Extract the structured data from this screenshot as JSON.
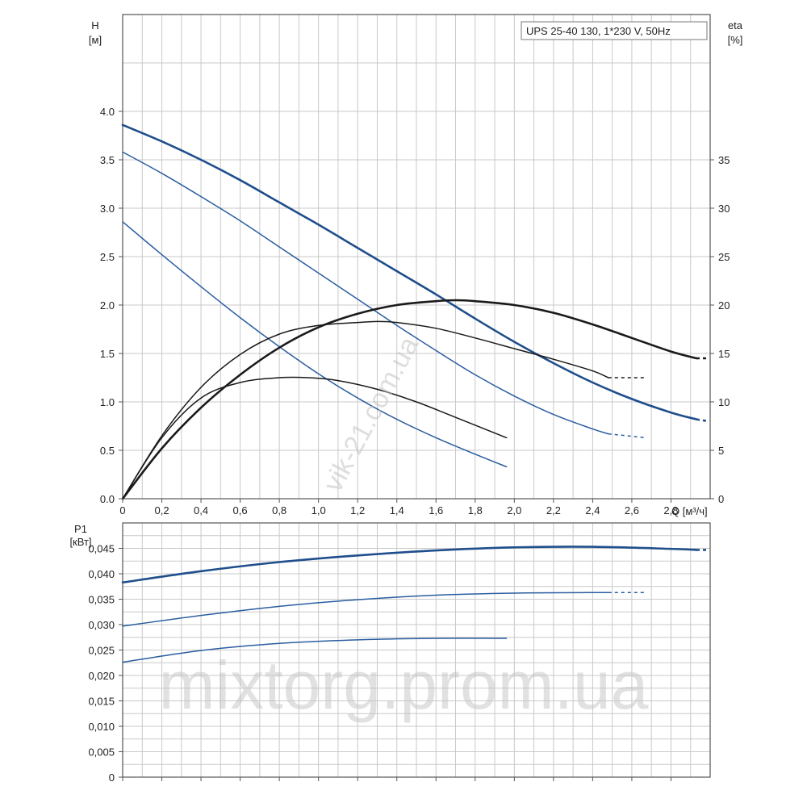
{
  "chart_data": [
    {
      "type": "line",
      "title": "UPS 25-40 130, 1*230 V, 50Hz",
      "xlabel": "Q [м³/ч]",
      "ylabel": "H",
      "ylabel_unit": "[м]",
      "y2label": "eta",
      "y2label_unit": "[%]",
      "xlim": [
        0,
        3.0
      ],
      "ylim": [
        0,
        5.0
      ],
      "y2lim": [
        0,
        50
      ],
      "xticks": [
        "0",
        "0,2",
        "0,4",
        "0,6",
        "0,8",
        "1,0",
        "1,2",
        "1,4",
        "1,6",
        "1,8",
        "2,0",
        "2,2",
        "2,4",
        "2,6",
        "2,8"
      ],
      "yticks": [
        "0.0",
        "0.5",
        "1.0",
        "1.5",
        "2.0",
        "2.5",
        "3.0",
        "3.5",
        "4.0"
      ],
      "y2ticks": [
        "0",
        "5",
        "10",
        "15",
        "20",
        "25",
        "30",
        "35"
      ],
      "grid": true,
      "series": [
        {
          "kind": "head",
          "speed": 3,
          "axis": "H",
          "color": "#1f4e8c",
          "x": [
            0,
            0.2,
            0.4,
            0.6,
            0.8,
            1.0,
            1.2,
            1.4,
            1.6,
            1.8,
            2.0,
            2.2,
            2.4,
            2.6,
            2.8,
            2.93
          ],
          "y": [
            3.86,
            3.69,
            3.5,
            3.29,
            3.06,
            2.83,
            2.59,
            2.35,
            2.11,
            1.86,
            1.62,
            1.4,
            1.2,
            1.03,
            0.89,
            0.82
          ],
          "dash_x": [
            2.93,
            2.99
          ],
          "dash_y": [
            0.82,
            0.8
          ]
        },
        {
          "kind": "head",
          "speed": 2,
          "axis": "H",
          "color": "#2a5da0",
          "x": [
            0,
            0.2,
            0.4,
            0.6,
            0.8,
            1.0,
            1.2,
            1.4,
            1.6,
            1.8,
            2.0,
            2.2,
            2.4,
            2.48
          ],
          "y": [
            3.58,
            3.36,
            3.12,
            2.87,
            2.6,
            2.33,
            2.06,
            1.79,
            1.53,
            1.28,
            1.06,
            0.87,
            0.72,
            0.67
          ],
          "dash_x": [
            2.48,
            2.67
          ],
          "dash_y": [
            0.67,
            0.63
          ]
        },
        {
          "kind": "head",
          "speed": 1,
          "axis": "H",
          "color": "#2a5da0",
          "x": [
            0,
            0.2,
            0.4,
            0.6,
            0.8,
            1.0,
            1.2,
            1.4,
            1.6,
            1.8,
            1.96
          ],
          "y": [
            2.86,
            2.52,
            2.19,
            1.87,
            1.57,
            1.29,
            1.04,
            0.82,
            0.63,
            0.46,
            0.33
          ]
        },
        {
          "kind": "eta",
          "speed": 3,
          "axis": "eta",
          "color": "#1a1a1a",
          "x": [
            0,
            0.2,
            0.4,
            0.6,
            0.8,
            1.0,
            1.2,
            1.4,
            1.6,
            1.7,
            1.8,
            2.0,
            2.2,
            2.4,
            2.6,
            2.8,
            2.93
          ],
          "y": [
            0,
            5.2,
            9.4,
            12.8,
            15.6,
            17.7,
            19.1,
            20.0,
            20.4,
            20.5,
            20.4,
            20.0,
            19.2,
            18.0,
            16.6,
            15.2,
            14.5
          ],
          "dash_x": [
            2.93,
            2.99
          ],
          "dash_y": [
            14.5,
            14.5
          ]
        },
        {
          "kind": "eta",
          "speed": 2,
          "axis": "eta",
          "color": "#1a1a1a",
          "x": [
            0,
            0.2,
            0.4,
            0.6,
            0.8,
            1.0,
            1.2,
            1.3,
            1.4,
            1.6,
            1.8,
            2.0,
            2.2,
            2.4,
            2.48
          ],
          "y": [
            0,
            6.5,
            11.5,
            14.9,
            17.0,
            17.9,
            18.2,
            18.3,
            18.2,
            17.6,
            16.6,
            15.5,
            14.4,
            13.2,
            12.5
          ],
          "dash_x": [
            2.48,
            2.67
          ],
          "dash_y": [
            12.5,
            12.5
          ]
        },
        {
          "kind": "eta",
          "speed": 1,
          "axis": "eta",
          "color": "#1a1a1a",
          "x": [
            0,
            0.2,
            0.4,
            0.6,
            0.8,
            0.95,
            1.1,
            1.3,
            1.5,
            1.7,
            1.96
          ],
          "y": [
            0,
            6.3,
            10.4,
            12.0,
            12.5,
            12.5,
            12.2,
            11.3,
            10.0,
            8.4,
            6.3
          ]
        }
      ]
    },
    {
      "type": "line",
      "ylabel": "P1",
      "ylabel_unit": "[кВт]",
      "xlim": [
        0,
        3.0
      ],
      "ylim": [
        0,
        0.05
      ],
      "yticks": [
        "0",
        "0,005",
        "0,010",
        "0,015",
        "0,020",
        "0,025",
        "0,030",
        "0,035",
        "0,040",
        "0,045"
      ],
      "grid": true,
      "series": [
        {
          "kind": "power",
          "speed": 3,
          "color": "#1f4e8c",
          "x": [
            0,
            0.4,
            0.8,
            1.2,
            1.6,
            2.0,
            2.4,
            2.8,
            2.93
          ],
          "y": [
            0.0383,
            0.0405,
            0.0423,
            0.0436,
            0.0446,
            0.0452,
            0.0453,
            0.0449,
            0.0447
          ],
          "dash_x": [
            2.93,
            2.99
          ],
          "dash_y": [
            0.0447,
            0.0447
          ]
        },
        {
          "kind": "power",
          "speed": 2,
          "color": "#2a5da0",
          "x": [
            0,
            0.4,
            0.8,
            1.2,
            1.6,
            2.0,
            2.4,
            2.48
          ],
          "y": [
            0.0297,
            0.0318,
            0.0336,
            0.0349,
            0.0358,
            0.0362,
            0.0363,
            0.0363
          ],
          "dash_x": [
            2.48,
            2.67
          ],
          "dash_y": [
            0.0363,
            0.0363
          ]
        },
        {
          "kind": "power",
          "speed": 1,
          "color": "#2a5da0",
          "x": [
            0,
            0.4,
            0.8,
            1.2,
            1.6,
            1.96
          ],
          "y": [
            0.0226,
            0.0249,
            0.0263,
            0.027,
            0.0273,
            0.0273
          ]
        }
      ]
    }
  ],
  "watermarks": {
    "diagonal": "vik-21.com.ua",
    "bottom": "mixtorg.prom.ua"
  }
}
